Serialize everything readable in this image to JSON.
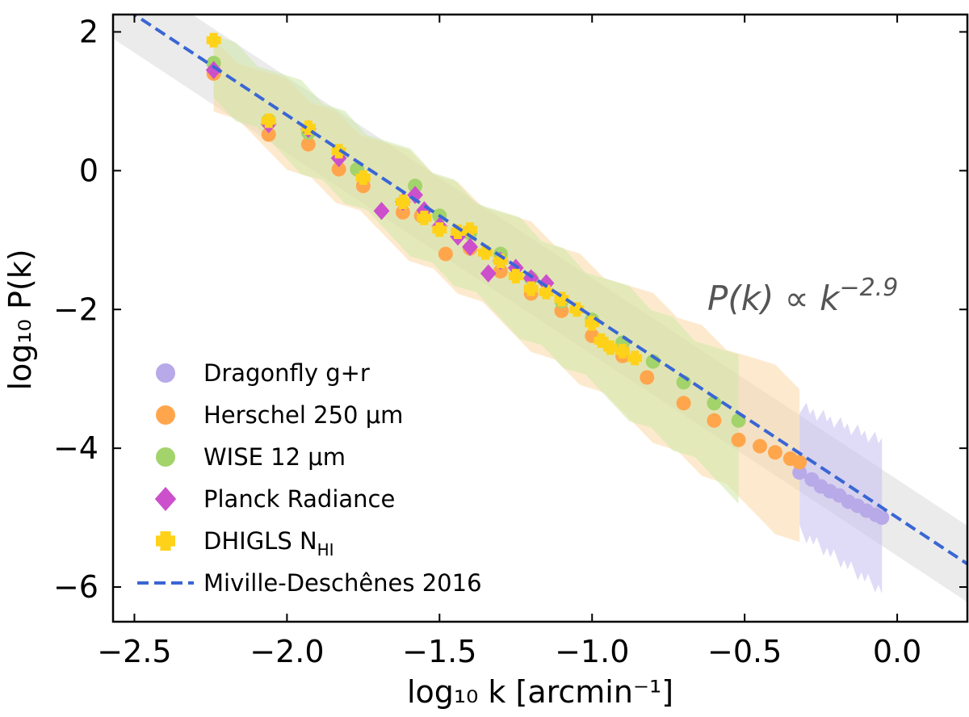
{
  "chart_data": {
    "type": "scatter",
    "xlabel": "log₁₀ k [arcmin⁻¹]",
    "ylabel": "log₁₀ P(k)",
    "xlim": [
      -2.57,
      0.23
    ],
    "ylim": [
      -6.5,
      2.25
    ],
    "xticks": [
      "−2.5",
      "−2.0",
      "−1.5",
      "−1.0",
      "−0.5",
      "0.0"
    ],
    "xtick_values": [
      -2.5,
      -2.0,
      -1.5,
      -1.0,
      -0.5,
      0.0
    ],
    "yticks": [
      "2",
      "0",
      "−2",
      "−4",
      "−6"
    ],
    "ytick_values": [
      2,
      0,
      -2,
      -4,
      -6
    ],
    "annotation": "P(k) ∝ k",
    "annotation_exponent": "−2.9",
    "legend_placement": "lower-left",
    "fit": {
      "name": "Miville-Deschênes 2016",
      "slope": -2.9,
      "intercept": -5.0,
      "color": "#3a66d4",
      "band_halfwidth": 0.55,
      "band_color": "#e3e3e3"
    },
    "series": [
      {
        "name": "Dragonfly g+r",
        "marker": "circle",
        "color": "#b8a9e8",
        "x": [
          -0.32,
          -0.28,
          -0.25,
          -0.22,
          -0.19,
          -0.16,
          -0.13,
          -0.1,
          -0.07,
          -0.05
        ],
        "y": [
          -4.35,
          -4.45,
          -4.55,
          -4.62,
          -4.68,
          -4.77,
          -4.83,
          -4.9,
          -4.96,
          -5.0
        ],
        "band": {
          "x": [
            -0.32,
            -0.05
          ],
          "lower": [
            -5.1,
            -5.95
          ],
          "upper": [
            -3.5,
            -4.0
          ],
          "color": "#c7bdf0"
        }
      },
      {
        "name": "Herschel 250 μm",
        "marker": "circle",
        "color": "#ffa64d",
        "x": [
          -2.24,
          -2.06,
          -1.93,
          -1.83,
          -1.75,
          -1.62,
          -1.56,
          -1.48,
          -1.4,
          -1.3,
          -1.2,
          -1.1,
          -1.0,
          -0.9,
          -0.82,
          -0.7,
          -0.6,
          -0.52,
          -0.45,
          -0.4,
          -0.35,
          -0.32
        ],
        "y": [
          1.4,
          0.52,
          0.38,
          0.02,
          -0.22,
          -0.6,
          -0.65,
          -1.2,
          -1.12,
          -1.45,
          -1.77,
          -2.02,
          -2.38,
          -2.67,
          -2.98,
          -3.35,
          -3.6,
          -3.88,
          -3.97,
          -4.06,
          -4.15,
          -4.2
        ],
        "band": {
          "x": [
            -2.24,
            -0.32
          ],
          "lower": [
            1.0,
            -5.3
          ],
          "upper": [
            1.75,
            -3.2
          ],
          "color": "#fcd9a6"
        }
      },
      {
        "name": "WISE 12 μm",
        "marker": "circle",
        "color": "#a3d36b",
        "x": [
          -2.24,
          -2.06,
          -1.93,
          -1.77,
          -1.58,
          -1.5,
          -1.4,
          -1.3,
          -1.2,
          -1.1,
          -1.0,
          -0.9,
          -0.8,
          -0.7,
          -0.6,
          -0.52
        ],
        "y": [
          1.55,
          0.72,
          0.55,
          0.02,
          -0.22,
          -0.65,
          -0.9,
          -1.2,
          -1.55,
          -1.88,
          -2.15,
          -2.48,
          -2.75,
          -3.05,
          -3.35,
          -3.6
        ],
        "band": {
          "x": [
            -2.24,
            -0.52
          ],
          "lower": [
            1.1,
            -4.6
          ],
          "upper": [
            1.9,
            -2.85
          ],
          "color": "#cfe8a8"
        }
      },
      {
        "name": "Planck Radiance",
        "marker": "diamond",
        "color": "#cc4fcc",
        "x": [
          -2.24,
          -2.06,
          -1.93,
          -1.83,
          -1.69,
          -1.62,
          -1.58,
          -1.55,
          -1.5,
          -1.44,
          -1.4,
          -1.34,
          -1.3,
          -1.25,
          -1.2,
          -1.15
        ],
        "y": [
          1.45,
          0.67,
          0.6,
          0.18,
          -0.58,
          -0.45,
          -0.35,
          -0.57,
          -0.8,
          -0.95,
          -1.1,
          -1.48,
          -1.3,
          -1.4,
          -1.55,
          -1.62
        ]
      },
      {
        "name": "DHIGLS N",
        "name_subscript": "HI",
        "marker": "plus",
        "color": "#ffd21a",
        "x": [
          -2.24,
          -2.06,
          -1.93,
          -1.83,
          -1.75,
          -1.62,
          -1.55,
          -1.5,
          -1.44,
          -1.4,
          -1.35,
          -1.3,
          -1.25,
          -1.2,
          -1.15,
          -1.1,
          -1.05,
          -1.0,
          -0.97,
          -0.94,
          -0.9,
          -0.86
        ],
        "y": [
          1.88,
          0.72,
          0.62,
          0.28,
          -0.1,
          -0.45,
          -0.68,
          -0.85,
          -0.88,
          -0.85,
          -1.18,
          -1.3,
          -1.52,
          -1.7,
          -1.75,
          -1.85,
          -2.0,
          -2.2,
          -2.45,
          -2.55,
          -2.6,
          -2.7
        ]
      }
    ]
  }
}
